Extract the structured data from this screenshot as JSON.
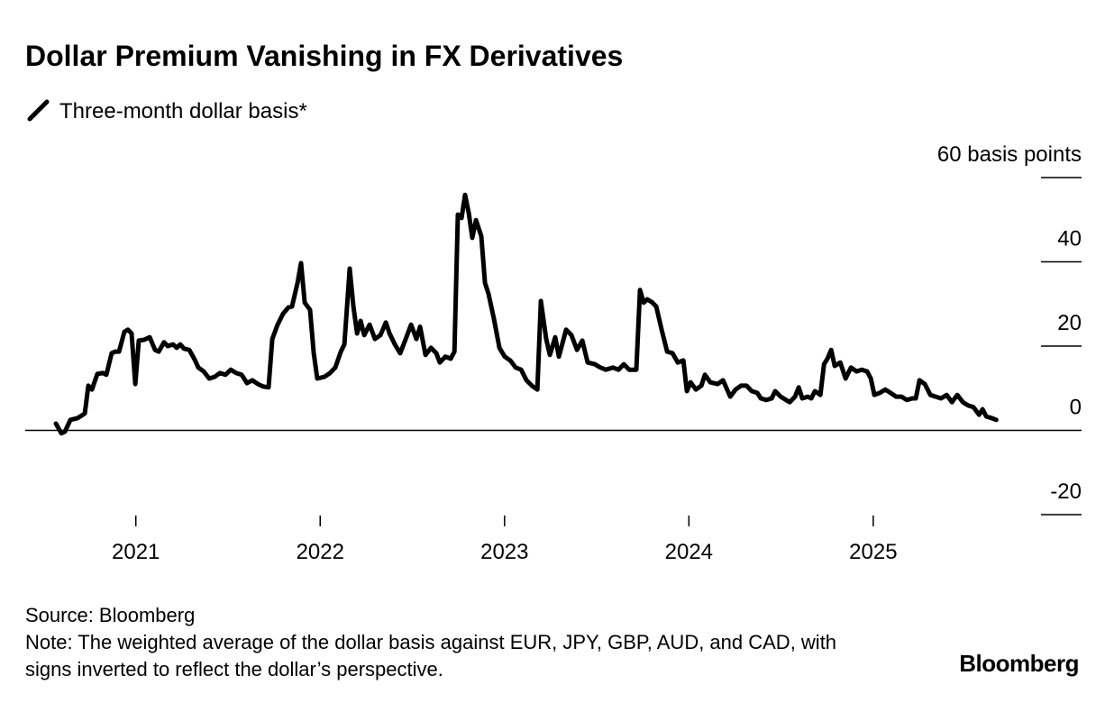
{
  "chart_data": {
    "type": "line",
    "title": "Dollar Premium Vanishing in FX Derivatives",
    "source": "Source: Bloomberg",
    "note": "Note: The weighted average of the dollar basis against EUR, JPY, GBP, AUD, and CAD, with signs inverted to reflect the dollar’s perspective.",
    "brand": "Bloomberg",
    "xlim": [
      2020.4,
      2026.13
    ],
    "xticks": [
      2021,
      2022,
      2023,
      2024,
      2025
    ],
    "ylim": [
      -20,
      60
    ],
    "yticks": [
      {
        "value": 60,
        "label": "60 basis points"
      },
      40,
      20,
      0,
      -20
    ],
    "x": [
      2020.566,
      2020.596,
      2020.615,
      2020.645,
      2020.684,
      2020.723,
      2020.742,
      2020.762,
      2020.791,
      2020.821,
      2020.84,
      2020.869,
      2020.889,
      2020.909,
      2020.938,
      2020.957,
      2020.977,
      2020.997,
      2021.016,
      2021.045,
      2021.075,
      2021.104,
      2021.124,
      2021.153,
      2021.173,
      2021.202,
      2021.222,
      2021.241,
      2021.261,
      2021.29,
      2021.319,
      2021.339,
      2021.368,
      2021.398,
      2021.427,
      2021.456,
      2021.486,
      2021.515,
      2021.544,
      2021.574,
      2021.603,
      2021.632,
      2021.662,
      2021.691,
      2021.72,
      2021.74,
      2021.769,
      2021.799,
      2021.828,
      2021.847,
      2021.877,
      2021.896,
      2021.916,
      2021.945,
      2021.965,
      2021.984,
      2022.023,
      2022.053,
      2022.082,
      2022.112,
      2022.131,
      2022.16,
      2022.18,
      2022.2,
      2022.219,
      2022.239,
      2022.268,
      2022.297,
      2022.327,
      2022.356,
      2022.376,
      2022.405,
      2022.434,
      2022.464,
      2022.493,
      2022.522,
      2022.542,
      2022.571,
      2022.601,
      2022.63,
      2022.649,
      2022.679,
      2022.708,
      2022.728,
      2022.747,
      2022.767,
      2022.786,
      2022.806,
      2022.825,
      2022.845,
      2022.874,
      2022.894,
      2022.913,
      2022.943,
      2022.972,
      2023.001,
      2023.031,
      2023.06,
      2023.09,
      2023.119,
      2023.148,
      2023.178,
      2023.197,
      2023.226,
      2023.246,
      2023.275,
      2023.295,
      2023.334,
      2023.363,
      2023.393,
      2023.422,
      2023.451,
      2023.49,
      2023.52,
      2023.549,
      2023.588,
      2023.618,
      2023.647,
      2023.676,
      2023.715,
      2023.735,
      2023.755,
      2023.774,
      2023.803,
      2023.823,
      2023.852,
      2023.882,
      2023.911,
      2023.94,
      2023.97,
      2023.989,
      2024.009,
      2024.038,
      2024.068,
      2024.087,
      2024.116,
      2024.156,
      2024.185,
      2024.224,
      2024.253,
      2024.283,
      2024.312,
      2024.341,
      2024.371,
      2024.39,
      2024.42,
      2024.449,
      2024.468,
      2024.498,
      2024.527,
      2024.547,
      2024.576,
      2024.596,
      2024.615,
      2024.645,
      2024.664,
      2024.684,
      2024.713,
      2024.733,
      2024.752,
      2024.772,
      2024.791,
      2024.821,
      2024.85,
      2024.879,
      2024.909,
      2024.938,
      2024.967,
      2024.987,
      2025.006,
      2025.036,
      2025.065,
      2025.094,
      2025.124,
      2025.153,
      2025.182,
      2025.212,
      2025.231,
      2025.251,
      2025.28,
      2025.31,
      2025.339,
      2025.368,
      2025.398,
      2025.427,
      2025.456,
      2025.486,
      2025.515,
      2025.544,
      2025.574,
      2025.593,
      2025.613,
      2025.642,
      2025.667
    ],
    "series": [
      {
        "name": "Three-month dollar basis*",
        "color": "#000000",
        "values": [
          1.6,
          -0.7,
          -0.3,
          2.5,
          2.9,
          4.0,
          10.6,
          9.7,
          13.4,
          13.6,
          13.2,
          18.3,
          18.7,
          18.7,
          23.4,
          23.9,
          23.0,
          11.0,
          21.3,
          21.5,
          22.1,
          19.1,
          18.7,
          20.9,
          20.0,
          20.4,
          19.6,
          20.4,
          19.4,
          19.1,
          16.8,
          14.9,
          14.0,
          12.3,
          12.7,
          13.6,
          13.2,
          14.4,
          13.6,
          13.2,
          11.2,
          11.9,
          11.0,
          10.4,
          10.2,
          21.7,
          25.1,
          27.7,
          29.2,
          29.4,
          35.0,
          39.7,
          30.3,
          28.6,
          18.3,
          12.3,
          12.7,
          13.6,
          14.9,
          18.7,
          20.4,
          38.4,
          29.4,
          23.0,
          26.0,
          22.6,
          25.1,
          21.7,
          22.6,
          25.6,
          23.0,
          20.4,
          18.3,
          21.7,
          25.1,
          21.7,
          24.6,
          17.9,
          19.6,
          18.3,
          16.1,
          17.5,
          17.0,
          18.7,
          51.2,
          50.4,
          55.9,
          51.6,
          45.7,
          49.9,
          46.1,
          35.0,
          32.4,
          26.4,
          19.6,
          17.5,
          16.6,
          14.9,
          14.4,
          11.9,
          10.6,
          9.7,
          30.7,
          21.7,
          17.9,
          22.1,
          17.5,
          23.9,
          22.6,
          19.1,
          21.3,
          16.1,
          15.7,
          14.9,
          14.4,
          14.9,
          14.4,
          15.7,
          14.4,
          14.4,
          33.3,
          30.3,
          31.1,
          30.3,
          29.4,
          23.9,
          18.7,
          18.3,
          16.1,
          16.6,
          9.3,
          11.4,
          9.7,
          10.6,
          13.2,
          11.4,
          11.0,
          11.9,
          8.0,
          9.7,
          10.6,
          10.6,
          9.3,
          8.9,
          7.6,
          7.2,
          7.6,
          9.3,
          8.0,
          7.2,
          6.7,
          8.0,
          10.2,
          7.6,
          8.0,
          7.6,
          9.3,
          8.4,
          15.7,
          17.0,
          19.1,
          15.3,
          16.1,
          12.3,
          14.9,
          14.0,
          14.4,
          14.0,
          12.3,
          8.4,
          8.9,
          9.7,
          8.9,
          8.0,
          8.0,
          7.2,
          7.6,
          7.6,
          11.9,
          11.0,
          8.4,
          8.0,
          7.6,
          8.4,
          6.7,
          8.4,
          6.7,
          5.9,
          5.5,
          3.7,
          5.0,
          3.3,
          2.9,
          2.5
        ]
      }
    ]
  }
}
